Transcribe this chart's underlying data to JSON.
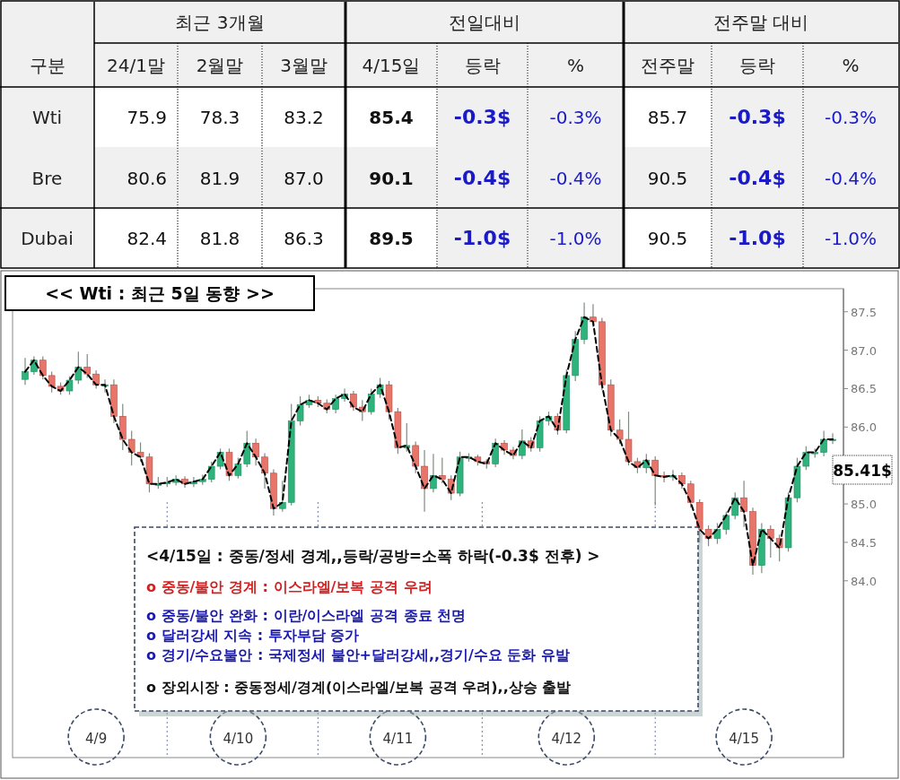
{
  "chart_data": [
    {
      "type": "other",
      "annotations": [
        "구분",
        "최근 3개월",
        "전일대비",
        "전주말 대비"
      ],
      "categories": [
        "24/1말",
        "2월말",
        "3월말",
        "4/15일",
        "등락",
        "%",
        "전주말",
        "등락",
        "%"
      ],
      "y_categories": [
        "Wti",
        "Bre",
        "Dubai"
      ],
      "cell_labels": [
        [
          "75.9",
          "78.3",
          "83.2",
          "85.4",
          "-0.3$",
          "-0.3%",
          "85.7",
          "-0.3$",
          "-0.3%"
        ],
        [
          "80.6",
          "81.9",
          "87.0",
          "90.1",
          "-0.4$",
          "-0.4%",
          "90.5",
          "-0.4$",
          "-0.4%"
        ],
        [
          "82.4",
          "81.8",
          "86.3",
          "89.5",
          "-1.0$",
          "-1.0%",
          "90.5",
          "-1.0$",
          "-1.0%"
        ]
      ]
    },
    {
      "type": "candlestick",
      "title": "<< Wti : 최근 5일 동향 >>",
      "categories": [
        null,
        null,
        null,
        null,
        null,
        null,
        null,
        null,
        "4/9",
        null,
        null,
        null,
        null,
        null,
        null,
        null,
        null,
        null,
        null,
        null,
        null,
        null,
        null,
        null,
        "4/10",
        null,
        null,
        null,
        null,
        null,
        null,
        null,
        null,
        null,
        null,
        null,
        null,
        null,
        null,
        null,
        null,
        null,
        "4/11",
        null,
        null,
        null,
        null,
        null,
        null,
        null,
        null,
        null,
        null,
        null,
        null,
        null,
        null,
        null,
        null,
        null,
        null,
        "4/12",
        null,
        null,
        null,
        null,
        null,
        null,
        null,
        null,
        null,
        null,
        null,
        null,
        null,
        null,
        null,
        null,
        null,
        null,
        null,
        "4/15",
        null,
        null,
        null,
        null,
        null,
        null,
        null,
        null,
        null,
        null
      ],
      "ohlc": [
        [
          86.62,
          86.9,
          86.55,
          86.72
        ],
        [
          86.72,
          86.92,
          86.68,
          86.87
        ],
        [
          86.87,
          86.92,
          86.62,
          86.67
        ],
        [
          86.67,
          86.72,
          86.45,
          86.53
        ],
        [
          86.53,
          86.58,
          86.42,
          86.47
        ],
        [
          86.47,
          86.66,
          86.42,
          86.61
        ],
        [
          86.61,
          86.98,
          86.56,
          86.78
        ],
        [
          86.78,
          86.95,
          86.64,
          86.69
        ],
        [
          86.69,
          86.74,
          86.5,
          86.55
        ],
        [
          86.55,
          86.62,
          86.45,
          86.55
        ],
        [
          86.55,
          86.62,
          86.05,
          86.14
        ],
        [
          86.14,
          86.3,
          85.7,
          85.84
        ],
        [
          85.84,
          85.95,
          85.5,
          85.67
        ],
        [
          85.67,
          85.8,
          85.55,
          85.61
        ],
        [
          85.61,
          85.66,
          85.15,
          85.26
        ],
        [
          85.26,
          85.35,
          85.2,
          85.26
        ],
        [
          85.26,
          85.35,
          85.22,
          85.28
        ],
        [
          85.28,
          85.37,
          85.24,
          85.32
        ],
        [
          85.32,
          85.36,
          85.21,
          85.26
        ],
        [
          85.26,
          85.35,
          85.22,
          85.29
        ],
        [
          85.29,
          85.38,
          85.25,
          85.32
        ],
        [
          85.32,
          85.55,
          85.28,
          85.49
        ],
        [
          85.49,
          85.72,
          85.45,
          85.67
        ],
        [
          85.67,
          85.72,
          85.3,
          85.37
        ],
        [
          85.37,
          85.6,
          85.33,
          85.52
        ],
        [
          85.52,
          85.95,
          85.48,
          85.79
        ],
        [
          85.79,
          85.85,
          85.5,
          85.61
        ],
        [
          85.61,
          85.66,
          85.2,
          85.4
        ],
        [
          85.4,
          85.45,
          84.85,
          84.94
        ],
        [
          84.94,
          85.3,
          84.9,
          85.02
        ],
        [
          85.02,
          86.3,
          84.98,
          86.08
        ],
        [
          86.08,
          86.4,
          86.02,
          86.29
        ],
        [
          86.29,
          86.42,
          86.25,
          86.35
        ],
        [
          86.35,
          86.4,
          86.26,
          86.31
        ],
        [
          86.31,
          86.36,
          86.18,
          86.23
        ],
        [
          86.23,
          86.42,
          86.18,
          86.37
        ],
        [
          86.37,
          86.5,
          86.33,
          86.43
        ],
        [
          86.43,
          86.47,
          86.21,
          86.26
        ],
        [
          86.26,
          86.35,
          86.08,
          86.2
        ],
        [
          86.2,
          86.5,
          86.16,
          86.43
        ],
        [
          86.43,
          86.64,
          86.38,
          86.55
        ],
        [
          86.55,
          86.6,
          86.1,
          86.2
        ],
        [
          86.2,
          86.25,
          85.65,
          85.73
        ],
        [
          85.73,
          86.05,
          85.68,
          85.76
        ],
        [
          85.76,
          85.81,
          85.4,
          85.49
        ],
        [
          85.49,
          85.7,
          84.9,
          85.2
        ],
        [
          85.2,
          85.65,
          85.15,
          85.37
        ],
        [
          85.37,
          85.6,
          85.27,
          85.32
        ],
        [
          85.32,
          85.37,
          85.05,
          85.14
        ],
        [
          85.14,
          85.68,
          85.1,
          85.61
        ],
        [
          85.61,
          85.66,
          85.55,
          85.61
        ],
        [
          85.61,
          85.64,
          85.5,
          85.55
        ],
        [
          85.55,
          85.58,
          85.46,
          85.52
        ],
        [
          85.52,
          85.85,
          85.48,
          85.79
        ],
        [
          85.79,
          85.83,
          85.64,
          85.7
        ],
        [
          85.7,
          85.74,
          85.58,
          85.63
        ],
        [
          85.63,
          85.97,
          85.58,
          85.82
        ],
        [
          85.82,
          85.87,
          85.68,
          85.73
        ],
        [
          85.73,
          86.14,
          85.68,
          86.08
        ],
        [
          86.08,
          86.2,
          86.02,
          86.14
        ],
        [
          86.14,
          86.18,
          85.9,
          85.96
        ],
        [
          85.96,
          86.75,
          85.92,
          86.67
        ],
        [
          86.67,
          87.25,
          86.6,
          87.14
        ],
        [
          87.14,
          87.62,
          87.08,
          87.43
        ],
        [
          87.43,
          87.6,
          87.3,
          87.37
        ],
        [
          87.37,
          87.42,
          86.48,
          86.55
        ],
        [
          86.55,
          86.62,
          85.88,
          85.96
        ],
        [
          85.96,
          86.1,
          85.78,
          85.84
        ],
        [
          85.84,
          86.2,
          85.5,
          85.55
        ],
        [
          85.55,
          85.6,
          85.4,
          85.47
        ],
        [
          85.47,
          85.65,
          85.4,
          85.57
        ],
        [
          85.57,
          85.62,
          84.98,
          85.37
        ],
        [
          85.37,
          85.42,
          85.28,
          85.35
        ],
        [
          85.35,
          85.44,
          85.3,
          85.37
        ],
        [
          85.37,
          85.41,
          85.2,
          85.26
        ],
        [
          85.26,
          85.3,
          84.95,
          85.02
        ],
        [
          85.02,
          85.06,
          84.5,
          84.67
        ],
        [
          84.67,
          84.72,
          84.45,
          84.55
        ],
        [
          84.55,
          84.75,
          84.48,
          84.67
        ],
        [
          84.67,
          84.9,
          84.6,
          84.85
        ],
        [
          84.85,
          85.15,
          84.8,
          85.08
        ],
        [
          85.08,
          85.3,
          84.7,
          84.9
        ],
        [
          84.9,
          84.95,
          84.08,
          84.2
        ],
        [
          84.2,
          84.75,
          84.1,
          84.67
        ],
        [
          84.67,
          84.72,
          84.3,
          84.55
        ],
        [
          84.55,
          84.6,
          84.25,
          84.43
        ],
        [
          84.43,
          85.15,
          84.38,
          85.08
        ],
        [
          85.08,
          85.6,
          85.02,
          85.49
        ],
        [
          85.49,
          85.75,
          85.44,
          85.67
        ],
        [
          85.67,
          85.72,
          85.6,
          85.67
        ],
        [
          85.67,
          85.95,
          85.62,
          85.84
        ],
        [
          85.84,
          85.92,
          85.78,
          85.84
        ]
      ],
      "series": [
        {
          "type": "line",
          "line_style": "dashed",
          "color": "#000000",
          "values": [
            86.72,
            86.87,
            86.67,
            86.53,
            86.47,
            86.61,
            86.78,
            86.69,
            86.55,
            86.55,
            86.14,
            85.84,
            85.67,
            85.61,
            85.26,
            85.26,
            85.28,
            85.32,
            85.26,
            85.29,
            85.32,
            85.49,
            85.67,
            85.37,
            85.52,
            85.79,
            85.61,
            85.4,
            84.94,
            85.02,
            86.08,
            86.29,
            86.35,
            86.31,
            86.23,
            86.37,
            86.43,
            86.26,
            86.2,
            86.43,
            86.55,
            86.2,
            85.73,
            85.76,
            85.49,
            85.2,
            85.37,
            85.32,
            85.14,
            85.61,
            85.61,
            85.55,
            85.52,
            85.79,
            85.7,
            85.63,
            85.82,
            85.73,
            86.08,
            86.14,
            85.96,
            86.67,
            87.14,
            87.43,
            87.37,
            86.55,
            85.96,
            85.84,
            85.55,
            85.47,
            85.57,
            85.37,
            85.35,
            85.37,
            85.26,
            85.02,
            84.67,
            84.55,
            84.67,
            84.85,
            85.08,
            84.9,
            84.2,
            84.67,
            84.55,
            84.43,
            85.08,
            85.49,
            85.67,
            85.67,
            85.84,
            85.84
          ]
        }
      ],
      "ylim": [
        81.7,
        87.8
      ],
      "yticks": [
        {
          "value": 84,
          "label": "84.0"
        },
        84.5,
        {
          "value": 85,
          "label": "85.0"
        },
        {
          "value": 86,
          "label": "86.0"
        },
        86.5,
        {
          "value": 87,
          "label": "87.0"
        },
        87.5
      ],
      "annotations": [
        "<4/15일 : 중동/정세 경계,,등락/공방=소폭 하락(-0.3$ 전후) >",
        "o 중동/불안 경계 : 이스라엘/보복 공격 우려",
        "o 중동/불안 완화 : 이란/이스라엘 공격 종료 천명",
        "o 달러강세 지속 : 투자부담 증가",
        "o 경기/수요불안 : 국제정세 불안+달러강세,,경기/수요 둔화 유발",
        "o 장외시장 : 중동정세/경계(이스라엘/보복 공격 우려),,상승 출발",
        "85.41$"
      ]
    }
  ]
}
